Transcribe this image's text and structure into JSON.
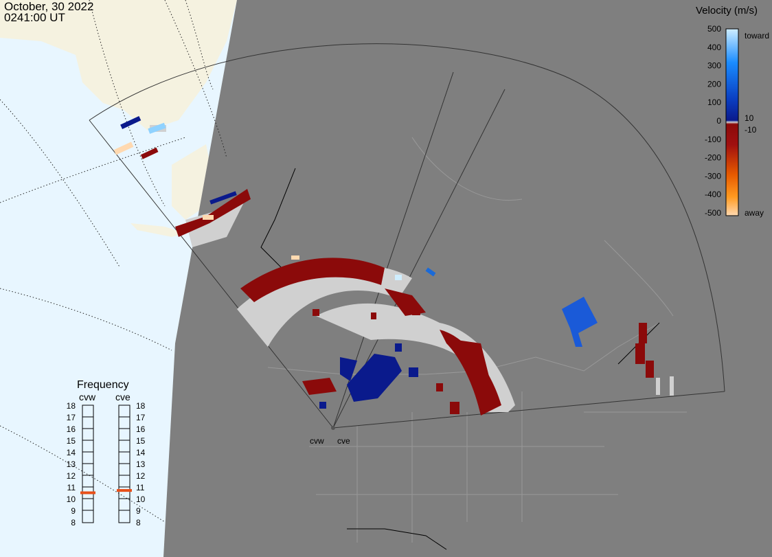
{
  "header": {
    "date": "October, 30 2022",
    "time": "0241:00 UT"
  },
  "velocity_scale": {
    "title": "Velocity (m/s)",
    "ticks": [
      "500",
      "400",
      "300",
      "200",
      "100",
      "0",
      "-100",
      "-200",
      "-300",
      "-400",
      "-500"
    ],
    "toward_label": "toward",
    "away_label": "away",
    "threshold_pos": "10",
    "threshold_neg": "-10",
    "colors": {
      "toward_max": "#cfeeff",
      "toward_mid": "#1a8cff",
      "toward_low": "#0a1a8c",
      "away_low": "#8b0a0a",
      "away_mid": "#ff6a00",
      "away_max": "#ffd9b0",
      "ground_scatter": "#d0d0d0"
    }
  },
  "frequency_panel": {
    "title": "Frequency",
    "radars": [
      {
        "name": "cvw",
        "frequency_mhz": 10.5
      },
      {
        "name": "cve",
        "frequency_mhz": 10.7
      }
    ],
    "levels": [
      "18",
      "17",
      "16",
      "15",
      "14",
      "13",
      "12",
      "11",
      "10",
      "9",
      "8"
    ]
  },
  "radar_sites": [
    {
      "name": "cvw"
    },
    {
      "name": "cve"
    }
  ],
  "map_colors": {
    "land_day": "#f5f2e0",
    "ocean_day": "#e8f6ff",
    "night": "#7f7f7f",
    "boundary": "#9a9a9a"
  }
}
